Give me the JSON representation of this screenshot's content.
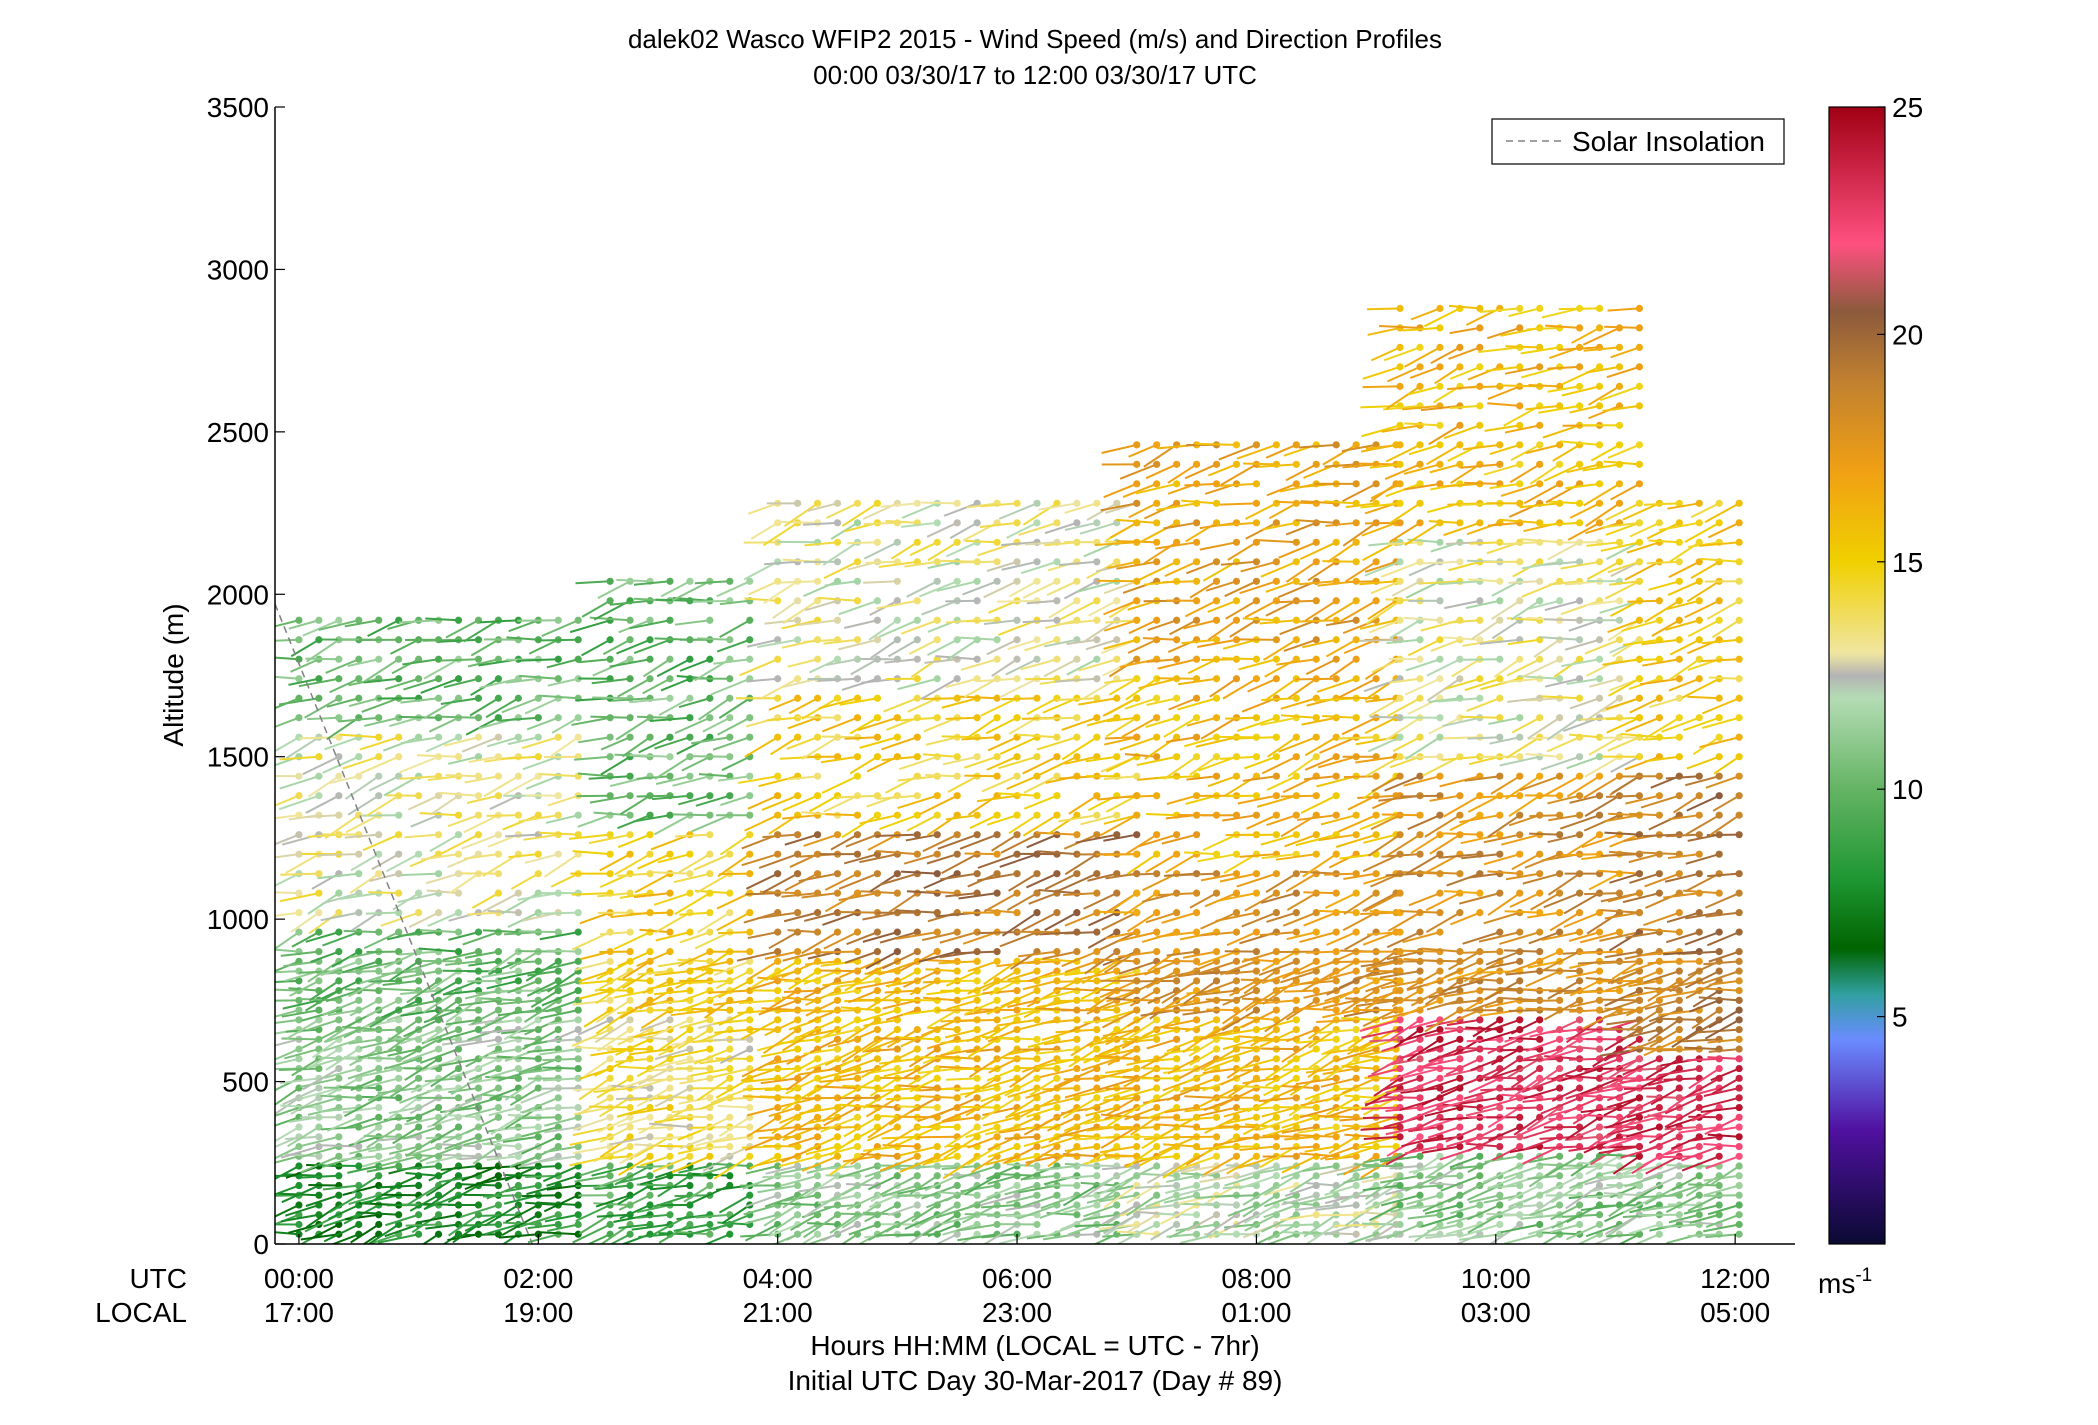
{
  "chart_data": {
    "type": "scatter",
    "subtype": "wind-barb-profile",
    "title": "dalek02 Wasco WFIP2 2015 - Wind Speed (m/s) and Direction Profiles",
    "subtitle": "00:00 03/30/17 to 12:00 03/30/17  UTC",
    "xlabel_line1": "Hours HH:MM  (LOCAL = UTC - 7hr)",
    "xlabel_line2": "Initial UTC Day 30-Mar-2017 (Day # 89)",
    "ylabel": "Altitude (m)",
    "ylim": [
      0,
      3500
    ],
    "xlim_hours_utc": [
      -0.2,
      12.5
    ],
    "y_ticks": [
      "0",
      "500",
      "1000",
      "1500",
      "2000",
      "2500",
      "3000",
      "3500"
    ],
    "x_ticks": [
      {
        "hour": 0,
        "utc": "00:00",
        "local": "17:00"
      },
      {
        "hour": 2,
        "utc": "02:00",
        "local": "19:00"
      },
      {
        "hour": 4,
        "utc": "04:00",
        "local": "21:00"
      },
      {
        "hour": 6,
        "utc": "06:00",
        "local": "23:00"
      },
      {
        "hour": 8,
        "utc": "08:00",
        "local": "01:00"
      },
      {
        "hour": 10,
        "utc": "10:00",
        "local": "03:00"
      },
      {
        "hour": 12,
        "utc": "12:00",
        "local": "05:00"
      }
    ],
    "x_row_labels": {
      "utc": "UTC",
      "local": "LOCAL"
    },
    "legend": {
      "label": "Solar Insolation",
      "position": "top-right",
      "style": "dashed",
      "color": "#808080"
    },
    "colorbar": {
      "range": [
        0,
        25
      ],
      "ticks": [
        "5",
        "10",
        "15",
        "20",
        "25"
      ],
      "unit_label": "ms",
      "unit_exp": "-1",
      "stops": [
        {
          "v": 0,
          "c": "#0a0a32"
        },
        {
          "v": 2.5,
          "c": "#5010a0"
        },
        {
          "v": 4.5,
          "c": "#6a8cff"
        },
        {
          "v": 5.5,
          "c": "#30a0a0"
        },
        {
          "v": 6.5,
          "c": "#006400"
        },
        {
          "v": 8,
          "c": "#1e9632"
        },
        {
          "v": 10,
          "c": "#64b464"
        },
        {
          "v": 12,
          "c": "#b4dcb4"
        },
        {
          "v": 12.5,
          "c": "#b4b4b4"
        },
        {
          "v": 13,
          "c": "#f0e6a0"
        },
        {
          "v": 15,
          "c": "#f0d000"
        },
        {
          "v": 17,
          "c": "#f0a014"
        },
        {
          "v": 19,
          "c": "#c08030"
        },
        {
          "v": 20.5,
          "c": "#8c5a3c"
        },
        {
          "v": 22,
          "c": "#ff5080"
        },
        {
          "v": 25,
          "c": "#a00014"
        }
      ]
    },
    "solar_insolation_line": [
      {
        "x": -0.2,
        "y": 1970
      },
      {
        "x": 1.95,
        "y": 0
      }
    ],
    "speed_field": {
      "description": "speed in m/s by altitude band for each time block",
      "blocks": [
        {
          "t0": 0.0,
          "t1": 2.4,
          "top": 1950,
          "bands": [
            [
              0,
              250,
              8
            ],
            [
              250,
              700,
              11
            ],
            [
              700,
              1000,
              10
            ],
            [
              1000,
              1600,
              13
            ],
            [
              1600,
              2000,
              10
            ]
          ]
        },
        {
          "t0": 2.6,
          "t1": 3.9,
          "top": 2050,
          "bands": [
            [
              0,
              250,
              9
            ],
            [
              250,
              700,
              14
            ],
            [
              700,
              1300,
              15
            ],
            [
              1300,
              2100,
              10
            ]
          ]
        },
        {
          "t0": 4.0,
          "t1": 7.0,
          "top": 2300,
          "bands": [
            [
              0,
              250,
              11
            ],
            [
              250,
              900,
              16
            ],
            [
              900,
              1300,
              19
            ],
            [
              1300,
              1700,
              15
            ],
            [
              1700,
              2300,
              13
            ]
          ]
        },
        {
          "t0": 7.0,
          "t1": 9.2,
          "top": 2500,
          "bands": [
            [
              0,
              250,
              12
            ],
            [
              250,
              700,
              16
            ],
            [
              700,
              1200,
              18
            ],
            [
              1200,
              1800,
              16
            ],
            [
              1800,
              2500,
              17
            ]
          ]
        },
        {
          "t0": 9.2,
          "t1": 11.2,
          "top": 2900,
          "bands": [
            [
              0,
              300,
              11
            ],
            [
              300,
              700,
              23
            ],
            [
              700,
              1500,
              18
            ],
            [
              1500,
              2200,
              13
            ],
            [
              2200,
              2900,
              16
            ]
          ]
        },
        {
          "t0": 11.2,
          "t1": 12.1,
          "top": 2300,
          "bands": [
            [
              0,
              250,
              11
            ],
            [
              250,
              600,
              23
            ],
            [
              600,
              1500,
              19
            ],
            [
              1500,
              2300,
              15
            ]
          ]
        }
      ]
    }
  }
}
